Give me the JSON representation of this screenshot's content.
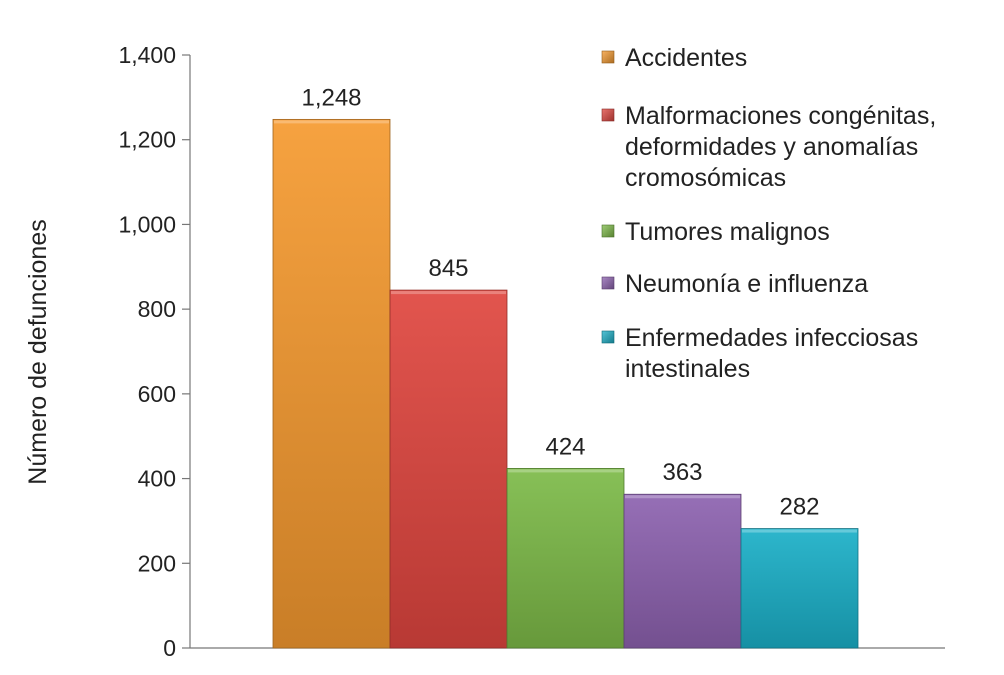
{
  "chart_data": {
    "type": "bar",
    "title": "",
    "xlabel": "",
    "ylabel": "Número de defunciones",
    "ylim": [
      0,
      1400
    ],
    "yticks": [
      0,
      200,
      400,
      600,
      800,
      1000,
      1200,
      1400
    ],
    "ytick_labels": [
      "0",
      "200",
      "400",
      "600",
      "800",
      "1,000",
      "1,200",
      "1,400"
    ],
    "grid": false,
    "legend_position": "right",
    "categories": [
      "Accidentes",
      "Malformaciones congénitas, deformidades y anomalías cromosómicas",
      "Tumores malignos",
      "Neumonía e influenza",
      "Enfermedades infecciosas intestinales"
    ],
    "values": [
      1248,
      845,
      424,
      363,
      282
    ],
    "value_labels": [
      "1,248",
      "845",
      "424",
      "363",
      "282"
    ],
    "colors": [
      "#F59A2F",
      "#E0463F",
      "#7DBB48",
      "#8D62B0",
      "#1BB0C8"
    ],
    "legend": [
      {
        "lines": [
          "Accidentes"
        ]
      },
      {
        "lines": [
          "Malformaciones congénitas,",
          "deformidades y anomalías",
          "cromosómicas"
        ]
      },
      {
        "lines": [
          "Tumores malignos"
        ]
      },
      {
        "lines": [
          "Neumonía e influenza"
        ]
      },
      {
        "lines": [
          "Enfermedades infecciosas",
          "intestinales"
        ]
      }
    ]
  }
}
